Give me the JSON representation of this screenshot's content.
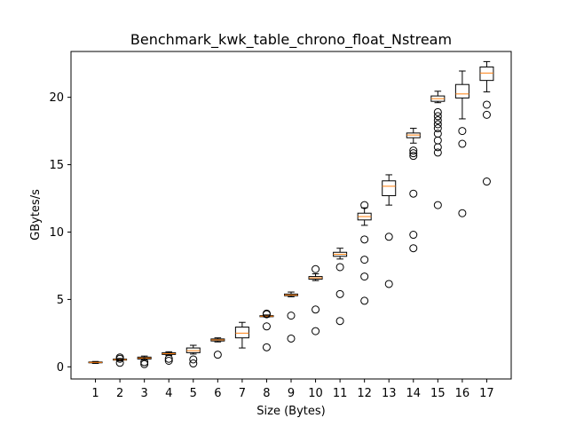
{
  "chart_data": {
    "type": "box",
    "title": "Benchmark_kwk_table_chrono_float_Nstream",
    "xlabel": "Size (Bytes)",
    "ylabel": "GBytes/s",
    "categories": [
      "1",
      "2",
      "3",
      "4",
      "5",
      "6",
      "7",
      "8",
      "9",
      "10",
      "11",
      "12",
      "13",
      "14",
      "15",
      "16",
      "17"
    ],
    "ylim": [
      -0.9,
      23.4
    ],
    "yticks": [
      0,
      5,
      10,
      15,
      20
    ],
    "grid": false,
    "box_color": "#000000",
    "median_color": "#ff7f0e",
    "boxes": [
      {
        "x": "1",
        "whisker_low": 0.25,
        "q1": 0.3,
        "median": 0.33,
        "q3": 0.36,
        "whisker_high": 0.4,
        "outliers": []
      },
      {
        "x": "2",
        "whisker_low": 0.45,
        "q1": 0.5,
        "median": 0.53,
        "q3": 0.57,
        "whisker_high": 0.62,
        "outliers": [
          0.3,
          0.6,
          0.7
        ]
      },
      {
        "x": "3",
        "whisker_low": 0.5,
        "q1": 0.58,
        "median": 0.65,
        "q3": 0.72,
        "whisker_high": 0.8,
        "outliers": [
          0.2,
          0.35
        ]
      },
      {
        "x": "4",
        "whisker_low": 0.85,
        "q1": 0.92,
        "median": 0.98,
        "q3": 1.05,
        "whisker_high": 1.12,
        "outliers": [
          0.45,
          0.6
        ]
      },
      {
        "x": "5",
        "whisker_low": 0.95,
        "q1": 1.05,
        "median": 1.2,
        "q3": 1.4,
        "whisker_high": 1.6,
        "outliers": [
          0.25,
          0.55
        ]
      },
      {
        "x": "6",
        "whisker_low": 1.85,
        "q1": 1.92,
        "median": 2.0,
        "q3": 2.07,
        "whisker_high": 2.15,
        "outliers": [
          0.9
        ]
      },
      {
        "x": "7",
        "whisker_low": 1.4,
        "q1": 2.15,
        "median": 2.5,
        "q3": 2.95,
        "whisker_high": 3.3,
        "outliers": []
      },
      {
        "x": "8",
        "whisker_low": 3.7,
        "q1": 3.72,
        "median": 3.76,
        "q3": 3.8,
        "whisker_high": 3.85,
        "outliers": [
          1.45,
          3.0,
          3.9,
          3.95
        ]
      },
      {
        "x": "9",
        "whisker_low": 5.2,
        "q1": 5.28,
        "median": 5.33,
        "q3": 5.4,
        "whisker_high": 5.55,
        "outliers": [
          2.1,
          3.8
        ]
      },
      {
        "x": "10",
        "whisker_low": 6.4,
        "q1": 6.5,
        "median": 6.6,
        "q3": 6.7,
        "whisker_high": 6.9,
        "outliers": [
          2.65,
          4.25,
          7.25
        ]
      },
      {
        "x": "11",
        "whisker_low": 8.0,
        "q1": 8.2,
        "median": 8.35,
        "q3": 8.5,
        "whisker_high": 8.8,
        "outliers": [
          3.4,
          5.4,
          7.4
        ]
      },
      {
        "x": "12",
        "whisker_low": 10.5,
        "q1": 10.9,
        "median": 11.15,
        "q3": 11.4,
        "whisker_high": 11.8,
        "outliers": [
          4.9,
          6.7,
          7.95,
          9.45,
          12.0
        ]
      },
      {
        "x": "13",
        "whisker_low": 12.0,
        "q1": 12.7,
        "median": 13.4,
        "q3": 13.8,
        "whisker_high": 14.25,
        "outliers": [
          6.15,
          9.65
        ]
      },
      {
        "x": "14",
        "whisker_low": 16.6,
        "q1": 17.0,
        "median": 17.2,
        "q3": 17.35,
        "whisker_high": 17.7,
        "outliers": [
          8.8,
          9.8,
          12.85,
          15.65,
          15.85,
          16.05
        ]
      },
      {
        "x": "15",
        "whisker_low": 19.6,
        "q1": 19.7,
        "median": 19.9,
        "q3": 20.1,
        "whisker_high": 20.45,
        "outliers": [
          12.0,
          15.9,
          16.3,
          16.8,
          17.3,
          17.7,
          18.0,
          18.3,
          18.6,
          18.9
        ]
      },
      {
        "x": "16",
        "whisker_low": 18.4,
        "q1": 19.95,
        "median": 20.25,
        "q3": 20.95,
        "whisker_high": 21.95,
        "outliers": [
          11.4,
          16.55,
          17.5
        ]
      },
      {
        "x": "17",
        "whisker_low": 20.4,
        "q1": 21.25,
        "median": 21.8,
        "q3": 22.25,
        "whisker_high": 22.65,
        "outliers": [
          13.75,
          18.7,
          19.45
        ]
      }
    ]
  }
}
